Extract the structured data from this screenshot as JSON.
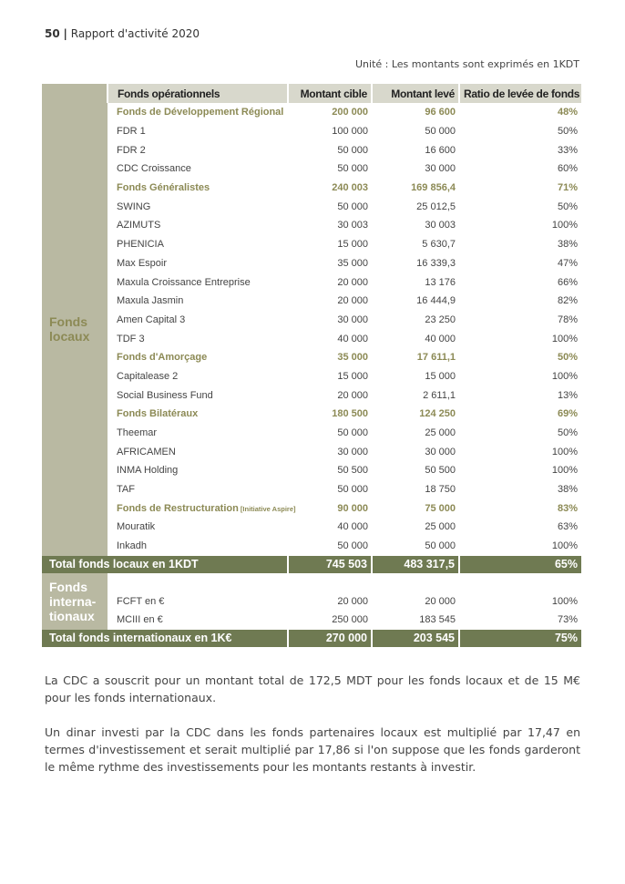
{
  "header": {
    "page_number": "50",
    "title": "Rapport d'activité 2020"
  },
  "unit_note": "Unité : Les montants sont exprimés en 1KDT",
  "table": {
    "columns": [
      "Fonds opérationnels",
      "Montant cible",
      "Montant levé",
      "Ratio de levée de fonds"
    ],
    "local_label": "Fonds locaux",
    "local_rows": [
      {
        "name": "Fonds de Développement Régional",
        "cible": "200 000",
        "leve": "96 600",
        "ratio": "48%",
        "group": true
      },
      {
        "name": "FDR 1",
        "cible": "100 000",
        "leve": "50 000",
        "ratio": "50%"
      },
      {
        "name": "FDR 2",
        "cible": "50 000",
        "leve": "16 600",
        "ratio": "33%"
      },
      {
        "name": "CDC Croissance",
        "cible": "50 000",
        "leve": "30 000",
        "ratio": "60%"
      },
      {
        "name": "Fonds Généralistes",
        "cible": "240 003",
        "leve": "169 856,4",
        "ratio": "71%",
        "group": true
      },
      {
        "name": "SWING",
        "cible": "50 000",
        "leve": "25 012,5",
        "ratio": "50%"
      },
      {
        "name": "AZIMUTS",
        "cible": "30 003",
        "leve": "30 003",
        "ratio": "100%"
      },
      {
        "name": "PHENICIA",
        "cible": "15 000",
        "leve": "5 630,7",
        "ratio": "38%"
      },
      {
        "name": "Max Espoir",
        "cible": "35 000",
        "leve": "16 339,3",
        "ratio": "47%"
      },
      {
        "name": "Maxula Croissance Entreprise",
        "cible": "20 000",
        "leve": "13 176",
        "ratio": "66%"
      },
      {
        "name": "Maxula Jasmin",
        "cible": "20 000",
        "leve": "16 444,9",
        "ratio": "82%"
      },
      {
        "name": "Amen Capital 3",
        "cible": "30 000",
        "leve": "23 250",
        "ratio": "78%"
      },
      {
        "name": "TDF 3",
        "cible": "40 000",
        "leve": "40 000",
        "ratio": "100%"
      },
      {
        "name": "Fonds d'Amorçage",
        "cible": "35 000",
        "leve": "17 611,1",
        "ratio": "50%",
        "group": true
      },
      {
        "name": "Capitalease 2",
        "cible": "15 000",
        "leve": "15 000",
        "ratio": "100%"
      },
      {
        "name": "Social Business Fund",
        "cible": "20 000",
        "leve": "2 611,1",
        "ratio": "13%"
      },
      {
        "name": "Fonds Bilatéraux",
        "cible": "180 500",
        "leve": "124 250",
        "ratio": "69%",
        "group": true
      },
      {
        "name": "Theemar",
        "cible": "50 000",
        "leve": "25 000",
        "ratio": "50%"
      },
      {
        "name": "AFRICAMEN",
        "cible": "30 000",
        "leve": "30 000",
        "ratio": "100%"
      },
      {
        "name": "INMA Holding",
        "cible": "50 500",
        "leve": "50 500",
        "ratio": "100%"
      },
      {
        "name": "TAF",
        "cible": "50 000",
        "leve": "18 750",
        "ratio": "38%"
      },
      {
        "name": "Fonds de Restructuration",
        "suffix": "[Initiative Aspire]",
        "cible": "90 000",
        "leve": "75 000",
        "ratio": "83%",
        "group": true
      },
      {
        "name": "Mouratik",
        "cible": "40 000",
        "leve": "25 000",
        "ratio": "63%"
      },
      {
        "name": "Inkadh",
        "cible": "50 000",
        "leve": "50 000",
        "ratio": "100%"
      }
    ],
    "local_total": {
      "label": "Total fonds locaux en 1KDT",
      "cible": "745 503",
      "leve": "483 317,5",
      "ratio": "65%"
    },
    "intl_label": "Fonds interna- tionaux",
    "intl_rows": [
      {
        "name": "FCFT en €",
        "cible": "20 000",
        "leve": "20 000",
        "ratio": "100%"
      },
      {
        "name": "MCIII en €",
        "cible": "250 000",
        "leve": "183 545",
        "ratio": "73%"
      }
    ],
    "intl_total": {
      "label": "Total fonds internationaux en 1K€",
      "cible": "270 000",
      "leve": "203 545",
      "ratio": "75%"
    }
  },
  "paragraphs": [
    "La CDC a souscrit pour un montant total de 172,5 MDT pour les fonds locaux et de 15 M€ pour les fonds internationaux.",
    "Un dinar investi par la CDC dans les fonds partenaires locaux est multiplié par 17,47 en termes d'investissement et serait multiplié par 17,86 si l'on suppose que les fonds garderont le même rythme des investissements pour les montants restants à investir."
  ]
}
